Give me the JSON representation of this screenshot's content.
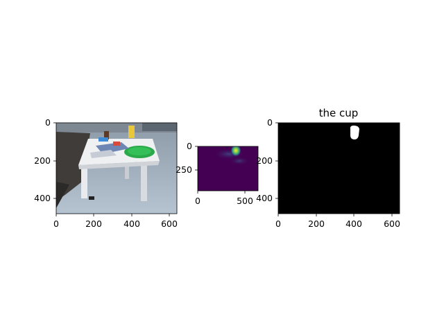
{
  "panels": [
    {
      "id": "rgb-image",
      "content": "photo of a white table with plates, cups and utensils",
      "x_ticks": [
        "0",
        "200",
        "400",
        "600"
      ],
      "y_ticks": [
        "0",
        "200",
        "400"
      ],
      "title": ""
    },
    {
      "id": "heatmap",
      "content": "attention heatmap, viridis colormap",
      "x_ticks": [
        "0",
        "500"
      ],
      "y_ticks": [
        "0",
        "250"
      ],
      "title": ""
    },
    {
      "id": "mask",
      "content": "binary segmentation mask",
      "x_ticks": [
        "0",
        "200",
        "400",
        "600"
      ],
      "y_ticks": [
        "0",
        "200",
        "400"
      ],
      "title": "the cup"
    }
  ],
  "colors": {
    "viridis_low": "#440154",
    "viridis_mid": "#2a788e",
    "viridis_high": "#fde725",
    "mask_bg": "#000000",
    "mask_fg": "#ffffff",
    "cup_yellow": "#e8c83a",
    "plate_green": "#2aa84a"
  }
}
